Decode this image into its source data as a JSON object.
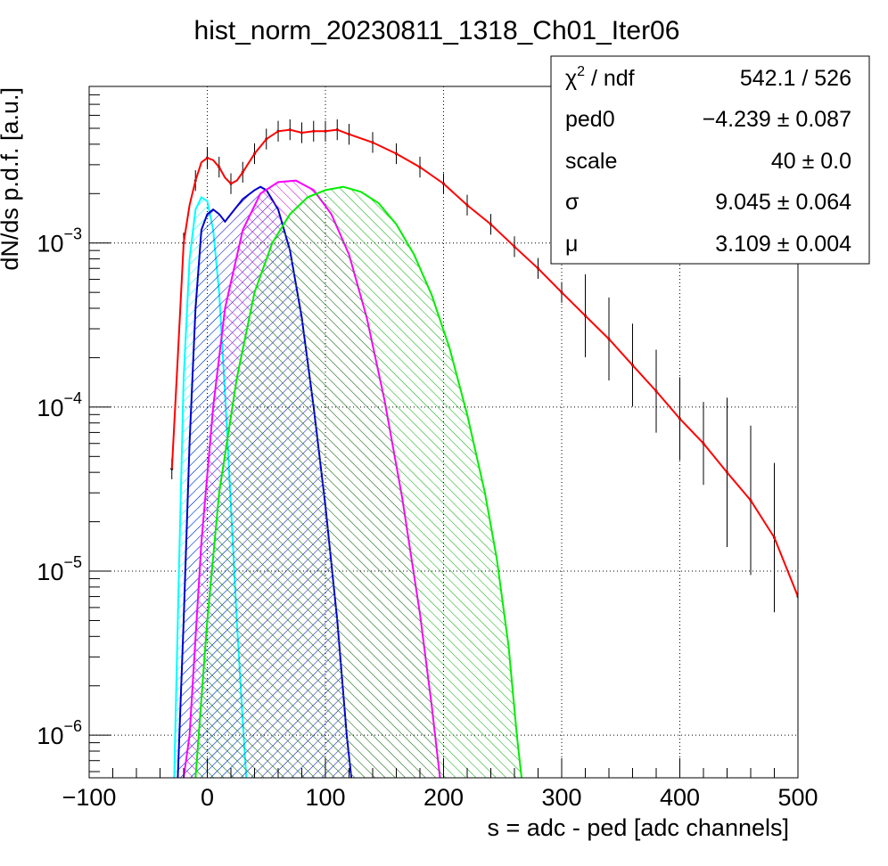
{
  "chart_data": {
    "type": "histogram",
    "title": "hist_norm_20230811_1318_Ch01_Iter06",
    "xlabel": "s = adc - ped [adc channels]",
    "ylabel": "dN/ds p.d.f. [a.u.]",
    "xlim": [
      -100,
      500
    ],
    "ylim": [
      5.5e-07,
      0.009
    ],
    "yscale": "log",
    "grid": true,
    "x_ticks": [
      {
        "value": -100,
        "label": "−100"
      },
      {
        "value": 0,
        "label": "0"
      },
      {
        "value": 100,
        "label": "100"
      },
      {
        "value": 200,
        "label": "200"
      },
      {
        "value": 300,
        "label": "300"
      },
      {
        "value": 400,
        "label": "400"
      },
      {
        "value": 500,
        "label": "500"
      }
    ],
    "y_ticks": [
      {
        "value": 1e-06,
        "base": "10",
        "exp": "−6"
      },
      {
        "value": 1e-05,
        "base": "10",
        "exp": "−5"
      },
      {
        "value": 0.0001,
        "base": "10",
        "exp": "−4"
      },
      {
        "value": 0.001,
        "base": "10",
        "exp": "−3"
      }
    ],
    "stats_box": [
      {
        "name_html": "χ",
        "sup": "2",
        "name_rest": " / ndf",
        "value": "542.1 / 526"
      },
      {
        "name_html": "ped0",
        "sup": "",
        "name_rest": "",
        "value": "−4.239 ± 0.087"
      },
      {
        "name_html": "scale",
        "sup": "",
        "name_rest": "",
        "value": "40 ± 0.0"
      },
      {
        "name_html": "σ",
        "sup": "",
        "name_rest": "",
        "value": "9.045 ± 0.064"
      },
      {
        "name_html": "μ",
        "sup": "",
        "name_rest": "",
        "value": "3.109 ± 0.004"
      }
    ],
    "series": [
      {
        "role": "data",
        "color": "#000000",
        "points": [
          [
            -30,
            4.2e-05
          ],
          [
            -20,
            0.001
          ],
          [
            -10,
            0.0024
          ],
          [
            0,
            0.0033
          ],
          [
            10,
            0.0029
          ],
          [
            20,
            0.0023
          ],
          [
            30,
            0.0027
          ],
          [
            40,
            0.0035
          ],
          [
            50,
            0.0043
          ],
          [
            60,
            0.0048
          ],
          [
            70,
            0.0049
          ],
          [
            80,
            0.0047
          ],
          [
            90,
            0.0048
          ],
          [
            100,
            0.0048
          ],
          [
            110,
            0.0049
          ],
          [
            120,
            0.0046
          ],
          [
            140,
            0.0041
          ],
          [
            160,
            0.0035
          ],
          [
            180,
            0.0029
          ],
          [
            200,
            0.0023
          ],
          [
            220,
            0.0017
          ],
          [
            240,
            0.0013
          ],
          [
            260,
            0.00095
          ],
          [
            280,
            0.0007
          ],
          [
            300,
            0.0005
          ],
          [
            320,
            0.00036
          ],
          [
            340,
            0.00026
          ],
          [
            360,
            0.00018
          ],
          [
            380,
            0.000125
          ],
          [
            400,
            8.5e-05
          ],
          [
            420,
            6e-05
          ],
          [
            440,
            4e-05
          ],
          [
            460,
            2.7e-05
          ],
          [
            480,
            1.6e-05
          ],
          [
            500,
            7e-06
          ]
        ]
      },
      {
        "role": "fit-total",
        "color": "#ff0000",
        "points": [
          [
            -30,
            4.2e-05
          ],
          [
            -25,
            0.0002
          ],
          [
            -20,
            0.001
          ],
          [
            -15,
            0.0017
          ],
          [
            -10,
            0.0024
          ],
          [
            -5,
            0.0031
          ],
          [
            0,
            0.0033
          ],
          [
            5,
            0.0032
          ],
          [
            10,
            0.0029
          ],
          [
            15,
            0.0025
          ],
          [
            20,
            0.0023
          ],
          [
            25,
            0.0024
          ],
          [
            30,
            0.0027
          ],
          [
            40,
            0.0035
          ],
          [
            50,
            0.0043
          ],
          [
            60,
            0.0048
          ],
          [
            70,
            0.0049
          ],
          [
            80,
            0.0047
          ],
          [
            90,
            0.0048
          ],
          [
            100,
            0.0048
          ],
          [
            110,
            0.0049
          ],
          [
            120,
            0.0046
          ],
          [
            140,
            0.0041
          ],
          [
            160,
            0.0035
          ],
          [
            180,
            0.0029
          ],
          [
            200,
            0.0023
          ],
          [
            220,
            0.0017
          ],
          [
            240,
            0.0013
          ],
          [
            260,
            0.00095
          ],
          [
            280,
            0.0007
          ],
          [
            300,
            0.0005
          ],
          [
            320,
            0.00036
          ],
          [
            340,
            0.00026
          ],
          [
            360,
            0.00018
          ],
          [
            380,
            0.000125
          ],
          [
            400,
            8.5e-05
          ],
          [
            420,
            6e-05
          ],
          [
            440,
            4e-05
          ],
          [
            460,
            2.7e-05
          ],
          [
            480,
            1.6e-05
          ],
          [
            500,
            7e-06
          ]
        ]
      },
      {
        "role": "component-1",
        "color": "#00ffff",
        "fill": "#00ffff",
        "points": [
          [
            -28,
            5.5e-07
          ],
          [
            -24,
            1e-05
          ],
          [
            -20,
            0.00015
          ],
          [
            -15,
            0.0008
          ],
          [
            -10,
            0.0016
          ],
          [
            -5,
            0.0019
          ],
          [
            0,
            0.0018
          ],
          [
            5,
            0.0012
          ],
          [
            10,
            0.0005
          ],
          [
            15,
            0.00012
          ],
          [
            20,
            2.5e-05
          ],
          [
            25,
            5e-06
          ],
          [
            30,
            1.2e-06
          ],
          [
            33,
            5.5e-07
          ]
        ]
      },
      {
        "role": "component-2",
        "color": "#0000cc",
        "fill": "#0000cc",
        "points": [
          [
            -25,
            5.5e-07
          ],
          [
            -20,
            5e-06
          ],
          [
            -15,
            6e-05
          ],
          [
            -10,
            0.0004
          ],
          [
            -5,
            0.0012
          ],
          [
            0,
            0.0015
          ],
          [
            5,
            0.0016
          ],
          [
            10,
            0.0015
          ],
          [
            15,
            0.00135
          ],
          [
            20,
            0.0015
          ],
          [
            30,
            0.00185
          ],
          [
            40,
            0.0021
          ],
          [
            45,
            0.0022
          ],
          [
            50,
            0.0021
          ],
          [
            60,
            0.0016
          ],
          [
            70,
            0.0009
          ],
          [
            80,
            0.00035
          ],
          [
            90,
            0.0001
          ],
          [
            100,
            2.5e-05
          ],
          [
            110,
            5e-06
          ],
          [
            118,
            1e-06
          ],
          [
            122,
            5.5e-07
          ]
        ]
      },
      {
        "role": "component-3",
        "color": "#ff00ff",
        "fill": "#cc00cc",
        "points": [
          [
            -20,
            5.5e-07
          ],
          [
            -15,
            1e-06
          ],
          [
            -5,
            1.5e-05
          ],
          [
            5,
            0.0001
          ],
          [
            15,
            0.0004
          ],
          [
            30,
            0.0012
          ],
          [
            45,
            0.002
          ],
          [
            60,
            0.00235
          ],
          [
            75,
            0.0024
          ],
          [
            90,
            0.0021
          ],
          [
            105,
            0.0015
          ],
          [
            120,
            0.00085
          ],
          [
            135,
            0.00035
          ],
          [
            150,
            0.00011
          ],
          [
            165,
            2.8e-05
          ],
          [
            180,
            5.5e-06
          ],
          [
            190,
            1.5e-06
          ],
          [
            197,
            5.5e-07
          ]
        ]
      },
      {
        "role": "component-4",
        "color": "#00ee00",
        "fill": "#00aa00",
        "points": [
          [
            -10,
            5.5e-07
          ],
          [
            0,
            5e-06
          ],
          [
            10,
            3e-05
          ],
          [
            25,
            0.00015
          ],
          [
            40,
            0.0005
          ],
          [
            55,
            0.001
          ],
          [
            70,
            0.0015
          ],
          [
            85,
            0.0019
          ],
          [
            100,
            0.0021
          ],
          [
            115,
            0.0022
          ],
          [
            130,
            0.00205
          ],
          [
            145,
            0.00175
          ],
          [
            160,
            0.0013
          ],
          [
            175,
            0.00085
          ],
          [
            190,
            0.00048
          ],
          [
            205,
            0.00023
          ],
          [
            220,
            9e-05
          ],
          [
            235,
            3e-05
          ],
          [
            245,
            1.2e-05
          ],
          [
            255,
            3.5e-06
          ],
          [
            262,
            1e-06
          ],
          [
            266,
            5.5e-07
          ]
        ]
      }
    ]
  }
}
